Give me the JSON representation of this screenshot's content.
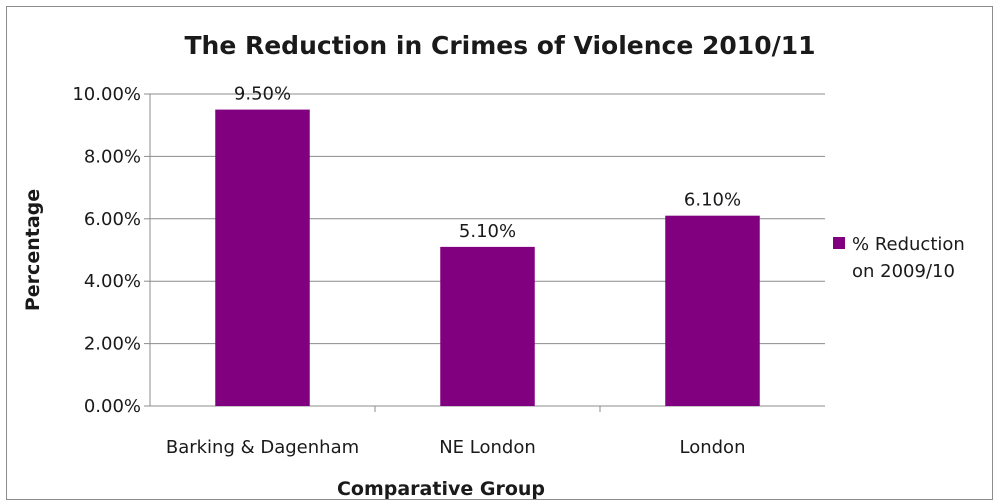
{
  "chart_data": {
    "type": "bar",
    "title": "The Reduction in Crimes of Violence 2010/11",
    "xlabel": "Comparative Group",
    "ylabel": "Percentage",
    "categories": [
      "Barking & Dagenham",
      "NE London",
      "London"
    ],
    "series": [
      {
        "name": "% Reduction on 2009/10",
        "name_lines": [
          "% Reduction",
          "on 2009/10"
        ],
        "values": [
          9.5,
          5.1,
          6.1
        ],
        "labels": [
          "9.50%",
          "5.10%",
          "6.10%"
        ],
        "color": "#800080"
      }
    ],
    "ylim": [
      0,
      10
    ],
    "yticks": [
      0,
      2,
      4,
      6,
      8,
      10
    ],
    "ytick_labels": [
      "0.00%",
      "2.00%",
      "4.00%",
      "6.00%",
      "8.00%",
      "10.00%"
    ],
    "grid": true,
    "legend": "right"
  }
}
